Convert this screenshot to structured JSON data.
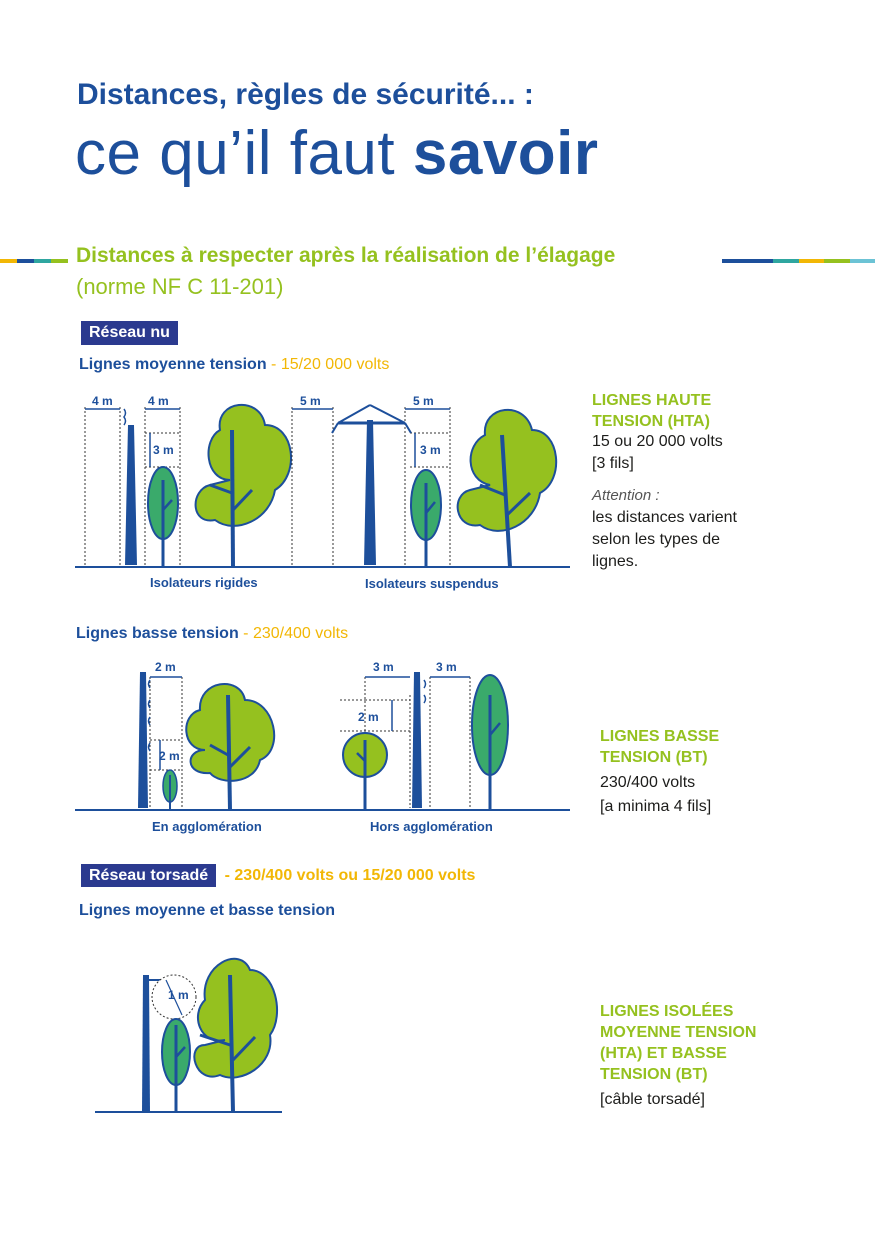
{
  "header": {
    "title_line1": "Distances, règles de sécurité... :",
    "title_line2_regular": "ce qu’il faut ",
    "title_line2_bold": "savoir"
  },
  "section": {
    "title": "Distances à respecter après la réalisation de l’élagage",
    "subtitle": "(norme NF C 11-201)",
    "stripe_colors": [
      "#f2b705",
      "#1d4f9b",
      "#2fa6a0",
      "#95c11f",
      "#6cc3d5"
    ]
  },
  "reseau_nu": {
    "tag": "Réseau nu",
    "hta": {
      "subtitle": "Lignes moyenne tension",
      "voltage": " - 15/20 000 volts",
      "dims": {
        "a": "4 m",
        "b": "4 m",
        "c": "3 m",
        "d": "5 m",
        "e": "5 m",
        "f": "3 m"
      },
      "caption_left": "Isolateurs rigides",
      "caption_right": "Isolateurs suspendus",
      "side_heading": "LIGNES HAUTE TENSION (HTA)",
      "side_text1": "15 ou 20 000 volts",
      "side_text2": "[3 fils]",
      "side_attention": "Attention :",
      "side_text3": "les distances varient selon les types de lignes."
    },
    "bt": {
      "subtitle": "Lignes basse tension",
      "voltage": " - 230/400 volts",
      "dims": {
        "a": "2 m",
        "b": "2 m",
        "c": "3 m",
        "d": "3 m",
        "e": "2 m"
      },
      "caption_left": "En agglomération",
      "caption_right": "Hors agglomération",
      "side_heading": "LIGNES BASSE TENSION (BT)",
      "side_text1": "230/400 volts",
      "side_text2": "[a minima 4 fils]"
    }
  },
  "reseau_torsade": {
    "tag": "Réseau torsadé",
    "voltage": " - 230/400 volts ou 15/20 000 volts",
    "subtitle": "Lignes moyenne et basse tension",
    "dim": "1 m",
    "side_heading": "LIGNES ISOLÉES MOYENNE TENSION (HTA) ET BASSE TENSION (BT)",
    "side_text": "[câble torsadé]"
  }
}
